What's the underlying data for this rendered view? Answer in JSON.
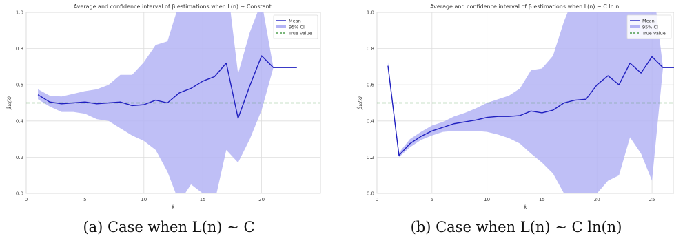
{
  "chart_data": [
    {
      "type": "line",
      "title": "Average and confidence interval of β estimations when L(n) ∼ Constant.",
      "caption": "(a) Case when L(n) ∼ C",
      "xlabel": "k",
      "ylabel": "β̂₁₀(k)",
      "xlim": [
        0,
        25
      ],
      "ylim": [
        0,
        1.0
      ],
      "xticks": [
        "0",
        "5",
        "10",
        "15",
        "20"
      ],
      "yticks": [
        "0.0",
        "0.2",
        "0.4",
        "0.6",
        "0.8",
        "1.0"
      ],
      "grid": true,
      "legend_position": "top-right",
      "true_value": 0.5,
      "series": [
        {
          "name": "Mean",
          "color": "#1f1fbf",
          "x": [
            1,
            2,
            3,
            4,
            5,
            6,
            7,
            8,
            9,
            10,
            11,
            12,
            13,
            14,
            15,
            16,
            17,
            18,
            19,
            20,
            21,
            22,
            23
          ],
          "values": [
            0.545,
            0.505,
            0.495,
            0.5,
            0.505,
            0.495,
            0.5,
            0.505,
            0.485,
            0.49,
            0.515,
            0.5,
            0.555,
            0.58,
            0.62,
            0.645,
            0.72,
            0.415,
            0.595,
            0.76,
            0.695,
            0.695,
            0.695
          ]
        },
        {
          "name": "95% CI",
          "color": "#b4b4f5",
          "x": [
            1,
            2,
            3,
            4,
            5,
            6,
            7,
            8,
            9,
            10,
            11,
            12,
            13,
            14,
            15,
            16,
            17,
            18,
            19,
            20,
            21
          ],
          "lower": [
            0.52,
            0.48,
            0.45,
            0.45,
            0.44,
            0.41,
            0.4,
            0.36,
            0.32,
            0.29,
            0.24,
            0.12,
            -0.05,
            0.05,
            0.0,
            -0.05,
            0.24,
            0.17,
            0.3,
            0.46,
            0.695
          ],
          "upper": [
            0.575,
            0.54,
            0.535,
            0.55,
            0.565,
            0.575,
            0.6,
            0.655,
            0.655,
            0.725,
            0.82,
            0.84,
            1.05,
            1.3,
            1.5,
            1.4,
            1.2,
            0.66,
            0.89,
            1.06,
            0.695
          ]
        },
        {
          "name": "True Value",
          "color": "#2a8a2a",
          "dashed": true
        }
      ]
    },
    {
      "type": "line",
      "title": "Average and confidence interval of β estimations when L(n) ∼ C ln n.",
      "caption": "(b) Case when L(n) ∼ C ln(n)",
      "xlabel": "k",
      "ylabel": "β̂₁₀(k)",
      "xlim": [
        0,
        27
      ],
      "ylim": [
        0,
        1.0
      ],
      "xticks": [
        "0",
        "5",
        "10",
        "15",
        "20",
        "25"
      ],
      "yticks": [
        "0.0",
        "0.2",
        "0.4",
        "0.6",
        "0.8",
        "1.0"
      ],
      "grid": true,
      "legend_position": "top-right",
      "true_value": 0.5,
      "series": [
        {
          "name": "Mean",
          "color": "#1f1fbf",
          "x": [
            1,
            2,
            3,
            4,
            5,
            6,
            7,
            8,
            9,
            10,
            11,
            12,
            13,
            14,
            15,
            16,
            17,
            18,
            19,
            20,
            21,
            22,
            23,
            24,
            25,
            26,
            27
          ],
          "values": [
            0.705,
            0.21,
            0.275,
            0.315,
            0.345,
            0.365,
            0.385,
            0.395,
            0.405,
            0.42,
            0.425,
            0.425,
            0.43,
            0.455,
            0.445,
            0.46,
            0.5,
            0.515,
            0.52,
            0.6,
            0.65,
            0.6,
            0.72,
            0.665,
            0.755,
            0.695,
            0.695
          ]
        },
        {
          "name": "95% CI",
          "color": "#b4b4f5",
          "x": [
            1,
            2,
            3,
            4,
            5,
            6,
            7,
            8,
            9,
            10,
            11,
            12,
            13,
            14,
            15,
            16,
            17,
            18,
            19,
            20,
            21,
            22,
            23,
            24,
            25,
            26
          ],
          "lower": [
            0.69,
            0.2,
            0.255,
            0.295,
            0.32,
            0.34,
            0.345,
            0.345,
            0.345,
            0.34,
            0.325,
            0.305,
            0.275,
            0.22,
            0.17,
            0.11,
            0.0,
            -0.05,
            -0.05,
            0.0,
            0.07,
            0.1,
            0.31,
            0.22,
            0.07,
            0.695
          ],
          "upper": [
            0.725,
            0.225,
            0.3,
            0.34,
            0.375,
            0.395,
            0.425,
            0.445,
            0.47,
            0.5,
            0.52,
            0.54,
            0.58,
            0.68,
            0.69,
            0.76,
            0.95,
            1.1,
            1.4,
            1.5,
            1.4,
            1.5,
            1.2,
            1.3,
            1.2,
            0.695
          ]
        },
        {
          "name": "True Value",
          "color": "#2a8a2a",
          "dashed": true
        }
      ]
    }
  ]
}
